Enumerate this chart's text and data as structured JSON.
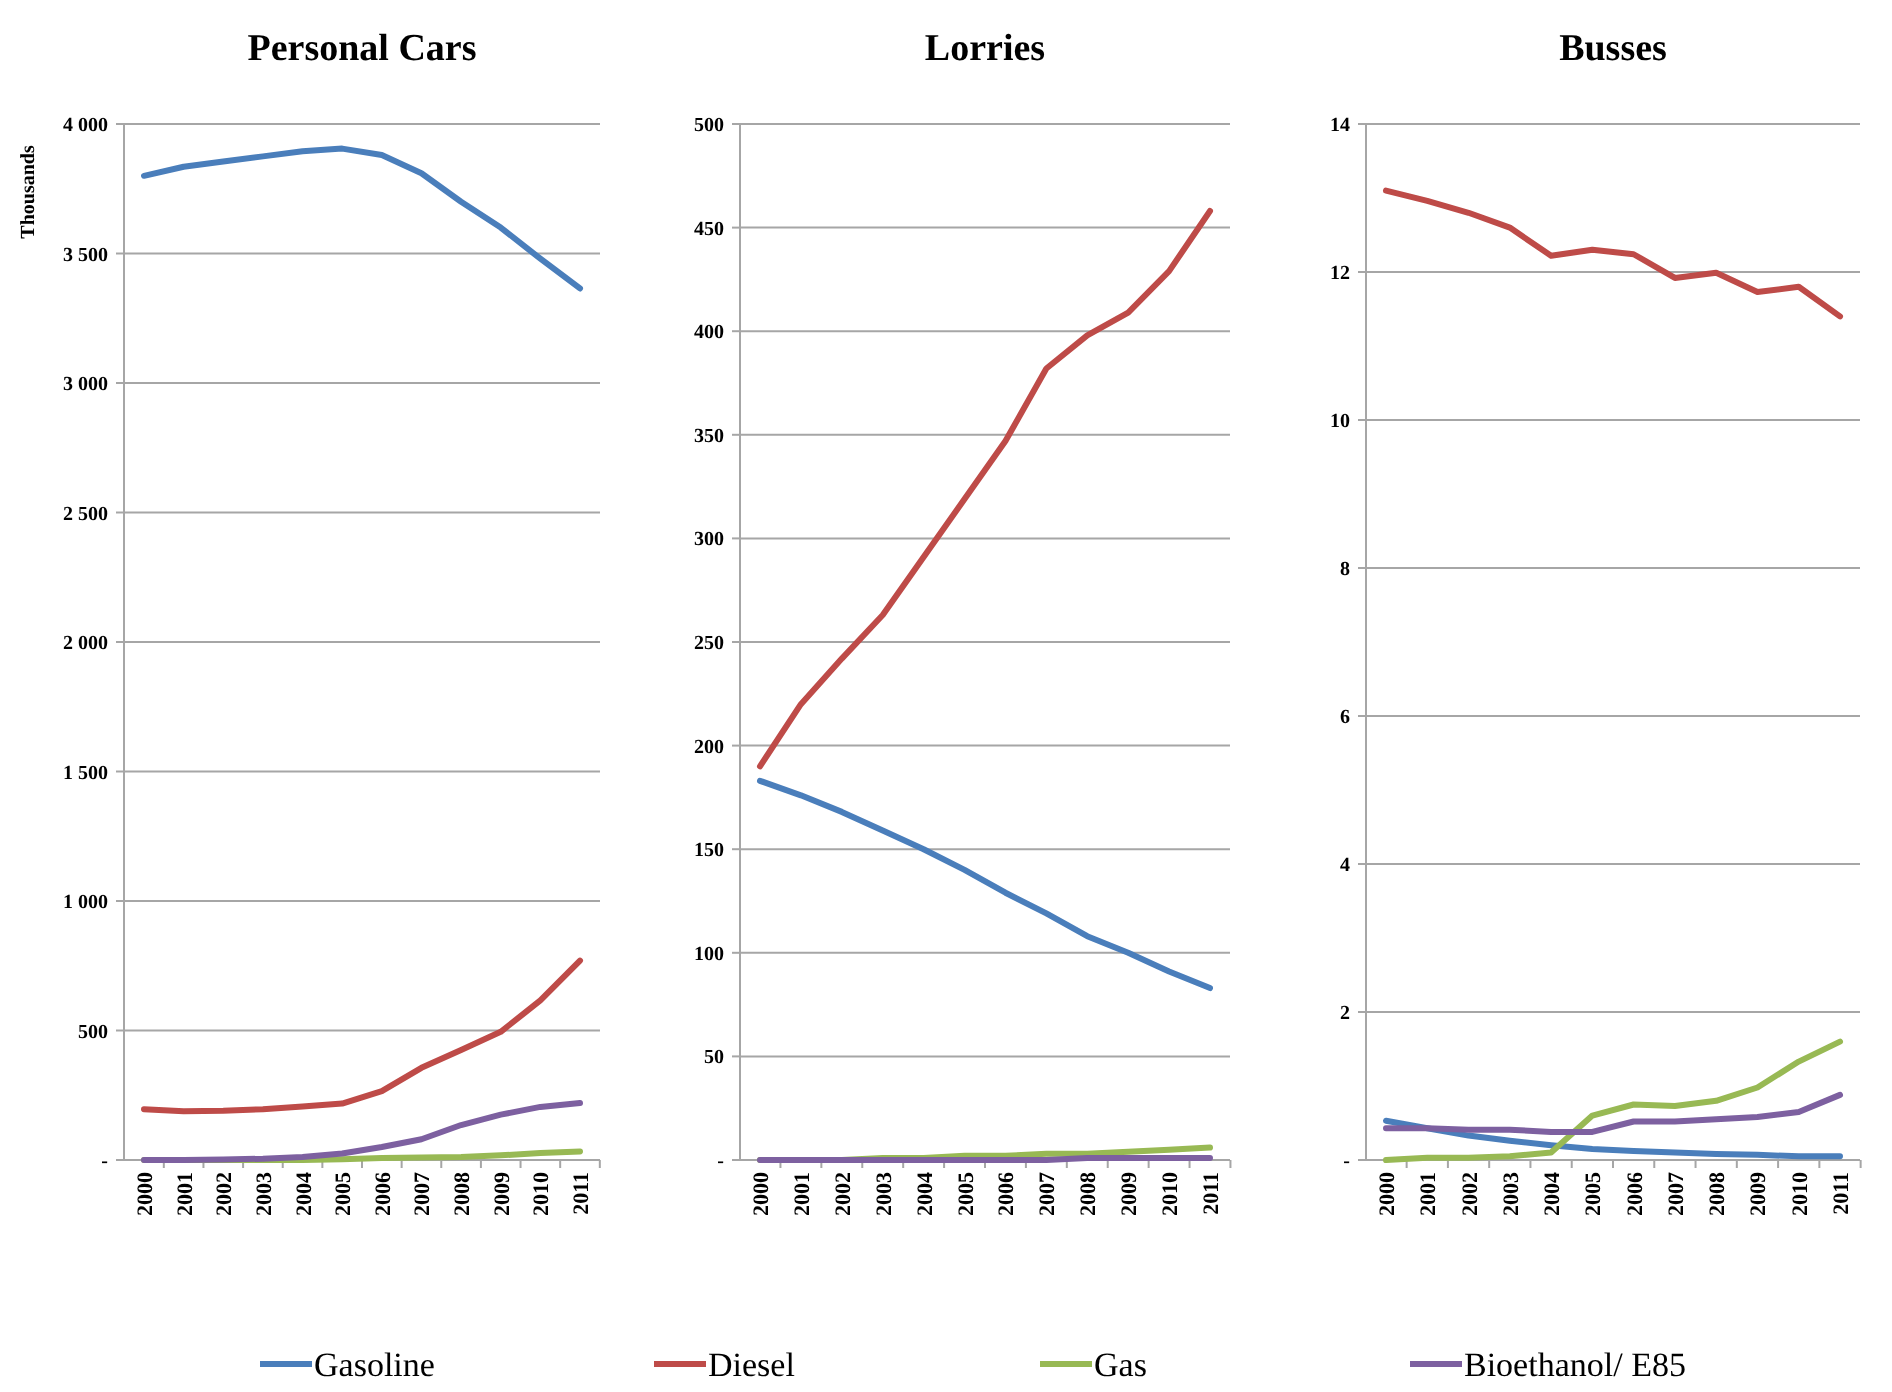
{
  "chart_data": [
    {
      "type": "line",
      "title": "Personal Cars",
      "ylabel": "Thousands",
      "categories": [
        "2000",
        "2001",
        "2002",
        "2003",
        "2004",
        "2005",
        "2006",
        "2007",
        "2008",
        "2009",
        "2010",
        "2011"
      ],
      "ylim": [
        0,
        4000
      ],
      "yticks": [
        {
          "value": 0,
          "label": "-"
        },
        {
          "value": 500,
          "label": "500"
        },
        {
          "value": 1000,
          "label": "1 000"
        },
        {
          "value": 1500,
          "label": "1 500"
        },
        {
          "value": 2000,
          "label": "2 000"
        },
        {
          "value": 2500,
          "label": "2 500"
        },
        {
          "value": 3000,
          "label": "3 000"
        },
        {
          "value": 3500,
          "label": "3 500"
        },
        {
          "value": 4000,
          "label": "4 000"
        }
      ],
      "grid": "y",
      "legend": "bottom",
      "series": [
        {
          "name": "Gasoline",
          "color": "#4a7ebb",
          "values": [
            3800,
            3835,
            3855,
            3875,
            3895,
            3905,
            3880,
            3810,
            3700,
            3600,
            3480,
            3365
          ]
        },
        {
          "name": "Diesel",
          "color": "#be4b48",
          "values": [
            196,
            188,
            190,
            196,
            207,
            218,
            266,
            356,
            425,
            495,
            616,
            770
          ]
        },
        {
          "name": "Gas",
          "color": "#98b954",
          "values": [
            0,
            0,
            0,
            0,
            0,
            3,
            8,
            10,
            12,
            18,
            27,
            33
          ]
        },
        {
          "name": "Bioethanol/ E85",
          "color": "#7d60a0",
          "values": [
            0,
            0,
            2,
            5,
            12,
            25,
            50,
            80,
            135,
            175,
            205,
            220
          ]
        }
      ]
    },
    {
      "type": "line",
      "title": "Lorries",
      "categories": [
        "2000",
        "2001",
        "2002",
        "2003",
        "2004",
        "2005",
        "2006",
        "2007",
        "2008",
        "2009",
        "2010",
        "2011"
      ],
      "ylim": [
        0,
        500
      ],
      "yticks": [
        {
          "value": 0,
          "label": "-"
        },
        50,
        100,
        150,
        200,
        250,
        300,
        350,
        400,
        450,
        500
      ],
      "grid": "y",
      "series": [
        {
          "color": "#4a7ebb",
          "values": [
            183,
            176,
            168,
            159,
            150,
            140,
            129,
            119,
            108,
            100,
            91,
            83
          ]
        },
        {
          "color": "#be4b48",
          "values": [
            190,
            220,
            242,
            263,
            291,
            319,
            347,
            382,
            398,
            409,
            429,
            458
          ]
        },
        {
          "color": "#98b954",
          "values": [
            0,
            0,
            0,
            1,
            1,
            2,
            2,
            3,
            3,
            4,
            5,
            6
          ]
        },
        {
          "color": "#7d60a0",
          "values": [
            0,
            0,
            0,
            0,
            0,
            0,
            0,
            0,
            1,
            1,
            1,
            1
          ]
        }
      ]
    },
    {
      "type": "line",
      "title": "Busses",
      "categories": [
        "2000",
        "2001",
        "2002",
        "2003",
        "2004",
        "2005",
        "2006",
        "2007",
        "2008",
        "2009",
        "2010",
        "2011"
      ],
      "ylim": [
        0,
        14
      ],
      "yticks": [
        {
          "value": 0,
          "label": "-"
        },
        2,
        4,
        6,
        8,
        10,
        12,
        14
      ],
      "grid": "y",
      "series": [
        {
          "color": "#4a7ebb",
          "values": [
            0.53,
            0.43,
            0.33,
            0.26,
            0.2,
            0.15,
            0.12,
            0.1,
            0.08,
            0.07,
            0.05,
            0.05
          ]
        },
        {
          "color": "#be4b48",
          "values": [
            13.1,
            12.96,
            12.8,
            12.6,
            12.22,
            12.3,
            12.24,
            11.92,
            11.99,
            11.73,
            11.8,
            11.4
          ]
        },
        {
          "color": "#98b954",
          "values": [
            0,
            0.03,
            0.03,
            0.05,
            0.1,
            0.6,
            0.75,
            0.73,
            0.8,
            0.98,
            1.33,
            1.6
          ]
        },
        {
          "color": "#7d60a0",
          "values": [
            0.43,
            0.43,
            0.41,
            0.41,
            0.38,
            0.38,
            0.52,
            0.52,
            0.55,
            0.58,
            0.65,
            0.88
          ]
        }
      ]
    }
  ]
}
